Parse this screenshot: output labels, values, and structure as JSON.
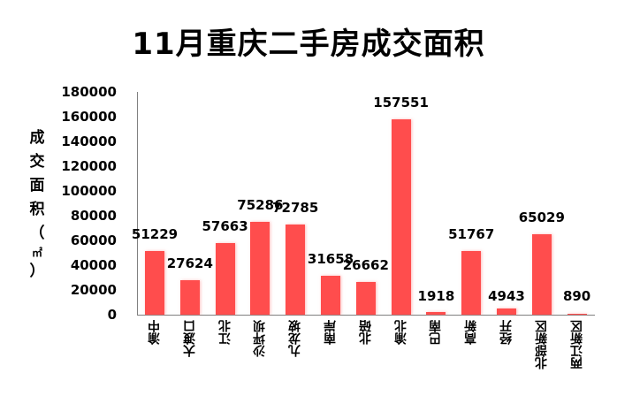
{
  "chart_data": {
    "type": "bar",
    "title": "11月重庆二手房成交面积",
    "xlabel": "",
    "ylabel": "成交面积（㎡）",
    "ylabel_chars": [
      "成",
      "交",
      "面",
      "积",
      "（",
      "㎡",
      "）"
    ],
    "ylim": [
      0,
      180000
    ],
    "yticks": [
      "180000",
      "160000",
      "140000",
      "120000",
      "100000",
      "80000",
      "60000",
      "40000",
      "20000",
      "0"
    ],
    "ytick_values": [
      180000,
      160000,
      140000,
      120000,
      100000,
      80000,
      60000,
      40000,
      20000,
      0
    ],
    "grid": false,
    "legend": null,
    "bar_color": "#ff4d4d",
    "categories": [
      "渝中",
      "大渡口",
      "江北",
      "沙坪坝",
      "九龙坡",
      "南岸",
      "北碚",
      "渝北",
      "巴南",
      "高新",
      "经开",
      "北部新区",
      "两江新区"
    ],
    "values": [
      51229,
      27624,
      57663,
      75286,
      72785,
      31658,
      26662,
      157551,
      1918,
      51767,
      4943,
      65029,
      890
    ],
    "data_labels": [
      "51229",
      "27624",
      "57663",
      "75286",
      "72785",
      "31658",
      "26662",
      "157551",
      "1918",
      "51767",
      "4943",
      "65029",
      "890"
    ]
  }
}
